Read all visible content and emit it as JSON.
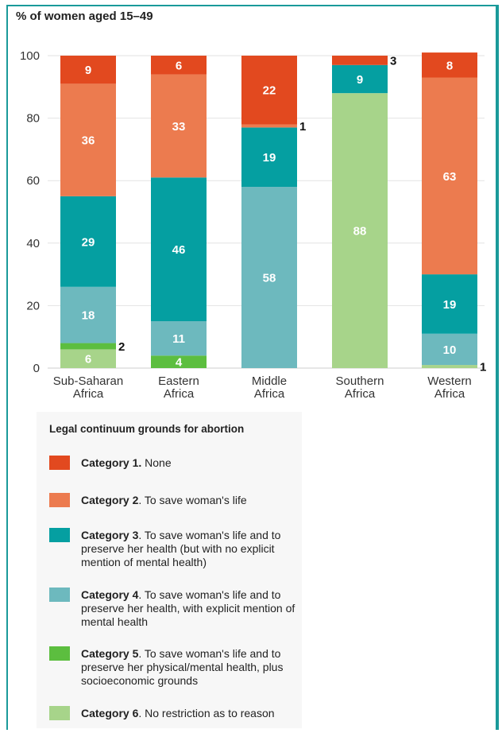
{
  "y_axis_title": "% of women aged 15–49",
  "legend": {
    "title": "Legal continuum grounds for abortion",
    "items": [
      {
        "name": "Category 1.",
        "desc": " None",
        "color": "#e2491f"
      },
      {
        "name": "Category 2",
        "desc": ". To save woman's life",
        "color": "#ec7b4f"
      },
      {
        "name": "Category 3",
        "desc": ". To save woman's life and to preserve her health (but with no explicit mention of mental health)",
        "color": "#059fa1"
      },
      {
        "name": "Category 4",
        "desc": ". To save woman's life and to preserve her health, with explicit mention of mental health",
        "color": "#6db9be"
      },
      {
        "name": "Category 5",
        "desc": ". To save woman's life and to preserve her physical/mental health, plus socioeconomic grounds",
        "color": "#5cbe3f"
      },
      {
        "name": "Category 6",
        "desc": ". No restriction as to reason",
        "color": "#a7d48a"
      }
    ]
  },
  "chart_data": {
    "type": "bar",
    "stacked": true,
    "ylabel": "% of women aged 15–49",
    "ylim": [
      0,
      100
    ],
    "yticks": [
      "0",
      "20",
      "40",
      "60",
      "80",
      "100"
    ],
    "grid": true,
    "categories": [
      [
        "Sub-Saharan",
        "Africa"
      ],
      [
        "Eastern",
        "Africa"
      ],
      [
        "Middle",
        "Africa"
      ],
      [
        "Southern",
        "Africa"
      ],
      [
        "Western",
        "Africa"
      ]
    ],
    "series": [
      {
        "name": "Category 6",
        "color": "#a7d48a",
        "values": [
          6,
          0,
          0,
          88,
          1
        ]
      },
      {
        "name": "Category 5",
        "color": "#5cbe3f",
        "values": [
          2,
          4,
          0,
          0,
          0
        ]
      },
      {
        "name": "Category 4",
        "color": "#6db9be",
        "values": [
          18,
          11,
          58,
          0,
          10
        ]
      },
      {
        "name": "Category 3",
        "color": "#059fa1",
        "values": [
          29,
          46,
          19,
          9,
          19
        ]
      },
      {
        "name": "Category 2",
        "color": "#ec7b4f",
        "values": [
          36,
          33,
          1,
          0,
          63
        ]
      },
      {
        "name": "Category 1",
        "color": "#e2491f",
        "values": [
          9,
          6,
          22,
          3,
          8
        ]
      }
    ]
  }
}
